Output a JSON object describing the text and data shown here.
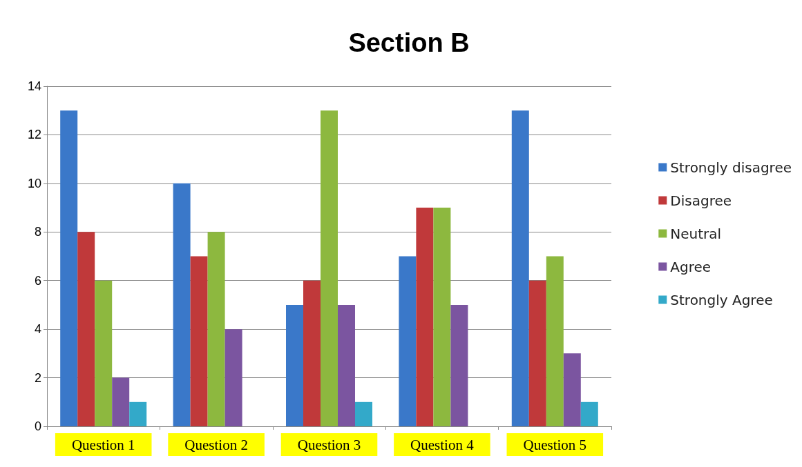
{
  "chart_data": {
    "type": "bar",
    "title": "Section B",
    "categories": [
      "Question 1",
      "Question 2",
      "Question 3",
      "Question 4",
      "Question 5"
    ],
    "series": [
      {
        "name": "Strongly disagree",
        "color": "#3a78c9",
        "values": [
          13,
          10,
          5,
          7,
          13
        ]
      },
      {
        "name": "Disagree",
        "color": "#c0393a",
        "values": [
          8,
          7,
          6,
          9,
          6
        ]
      },
      {
        "name": "Neutral",
        "color": "#8db83f",
        "values": [
          6,
          8,
          13,
          9,
          7
        ]
      },
      {
        "name": "Agree",
        "color": "#7b55a0",
        "values": [
          2,
          4,
          5,
          5,
          3
        ]
      },
      {
        "name": "Strongly Agree",
        "color": "#33a9c9",
        "values": [
          1,
          0,
          1,
          0,
          1
        ]
      }
    ],
    "ylim": [
      0,
      14
    ],
    "yticks": [
      0,
      2,
      4,
      6,
      8,
      10,
      12,
      14
    ],
    "grid": "y",
    "legend": "right"
  }
}
